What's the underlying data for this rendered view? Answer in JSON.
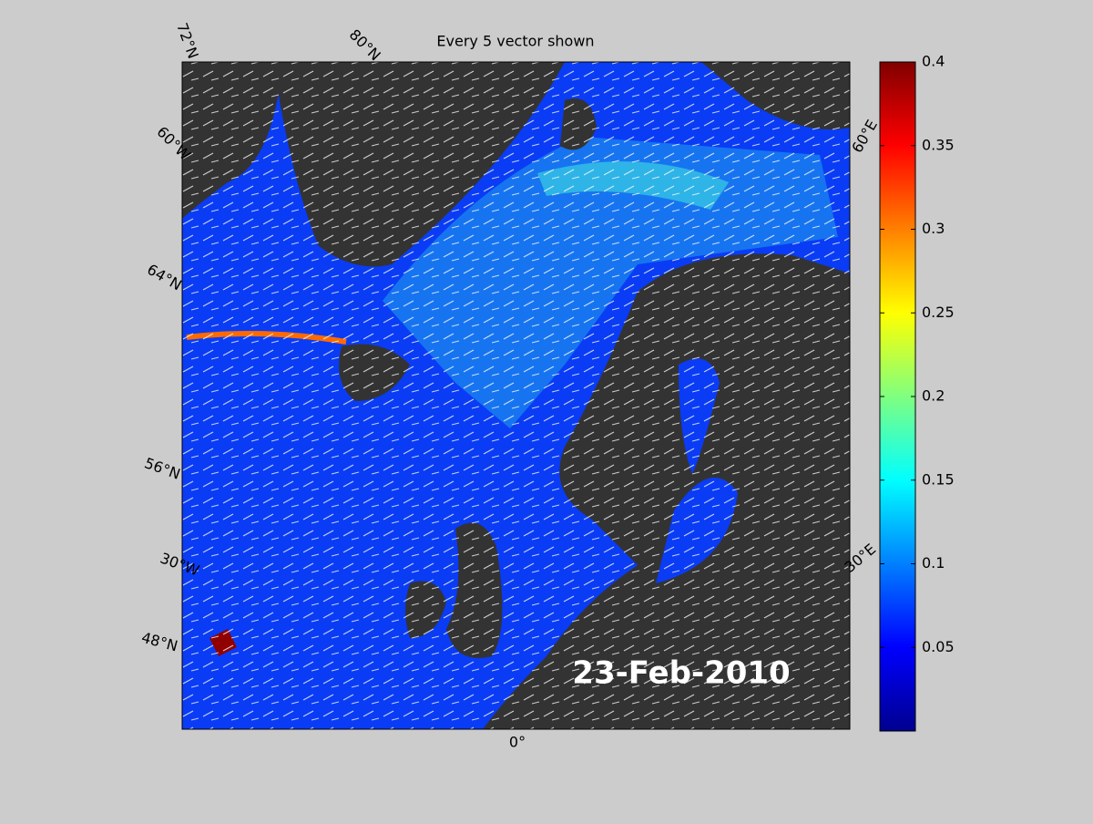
{
  "title": "Every 5 vector shown",
  "date_label": "23-Feb-2010",
  "graticule_labels": [
    "72°N",
    "80°N",
    "60°W",
    "64°N",
    "56°N",
    "30°W",
    "48°N",
    "0°",
    "60°E",
    "30°E"
  ],
  "colorbar": {
    "lim": [
      0,
      0.4
    ],
    "ticks": [
      0.05,
      0.1,
      0.15,
      0.2,
      0.25,
      0.3,
      0.35,
      0.4
    ]
  }
}
